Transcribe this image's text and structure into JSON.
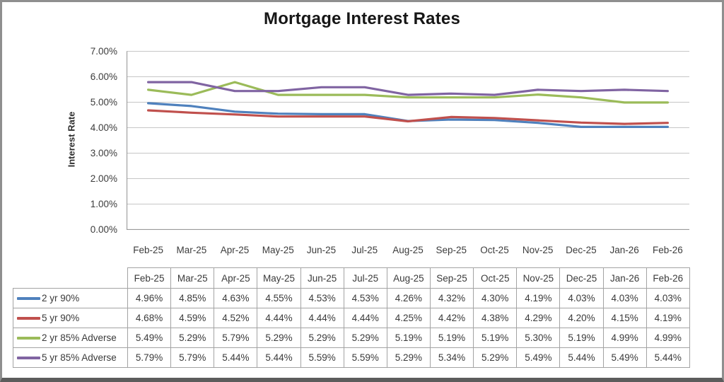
{
  "title": "Mortgage Interest Rates",
  "chart_data": {
    "type": "line",
    "title": "Mortgage Interest Rates",
    "xlabel": "",
    "ylabel": "Interest Rate",
    "ylim": [
      0,
      7
    ],
    "ytick_step": 1,
    "ytick_labels": [
      "0.00%",
      "1.00%",
      "2.00%",
      "3.00%",
      "4.00%",
      "5.00%",
      "6.00%",
      "7.00%"
    ],
    "grid": "horizontal",
    "legend_position": "data-table-left-column",
    "categories": [
      "Feb-25",
      "Mar-25",
      "Apr-25",
      "May-25",
      "Jun-25",
      "Jul-25",
      "Aug-25",
      "Sep-25",
      "Oct-25",
      "Nov-25",
      "Dec-25",
      "Jan-26",
      "Feb-26"
    ],
    "series": [
      {
        "name": "2 yr 90%",
        "color": "#4F81BD",
        "values": [
          4.96,
          4.85,
          4.63,
          4.55,
          4.53,
          4.53,
          4.26,
          4.32,
          4.3,
          4.19,
          4.03,
          4.03,
          4.03
        ]
      },
      {
        "name": "5 yr 90%",
        "color": "#C0504D",
        "values": [
          4.68,
          4.59,
          4.52,
          4.44,
          4.44,
          4.44,
          4.25,
          4.42,
          4.38,
          4.29,
          4.2,
          4.15,
          4.19
        ]
      },
      {
        "name": "2 yr 85% Adverse",
        "color": "#9BBB59",
        "values": [
          5.49,
          5.29,
          5.79,
          5.29,
          5.29,
          5.29,
          5.19,
          5.19,
          5.19,
          5.3,
          5.19,
          4.99,
          4.99
        ]
      },
      {
        "name": "5 yr 85% Adverse",
        "color": "#8064A2",
        "values": [
          5.79,
          5.79,
          5.44,
          5.44,
          5.59,
          5.59,
          5.29,
          5.34,
          5.29,
          5.49,
          5.44,
          5.49,
          5.44
        ]
      }
    ]
  },
  "data_table": {
    "columns": [
      "Feb-25",
      "Mar-25",
      "Apr-25",
      "May-25",
      "Jun-25",
      "Jul-25",
      "Aug-25",
      "Sep-25",
      "Oct-25",
      "Nov-25",
      "Dec-25",
      "Jan-26",
      "Feb-26"
    ],
    "rows": [
      {
        "label": "2 yr 90%",
        "values": [
          "4.96%",
          "4.85%",
          "4.63%",
          "4.55%",
          "4.53%",
          "4.53%",
          "4.26%",
          "4.32%",
          "4.30%",
          "4.19%",
          "4.03%",
          "4.03%",
          "4.03%"
        ]
      },
      {
        "label": "5 yr 90%",
        "values": [
          "4.68%",
          "4.59%",
          "4.52%",
          "4.44%",
          "4.44%",
          "4.44%",
          "4.25%",
          "4.42%",
          "4.38%",
          "4.29%",
          "4.20%",
          "4.15%",
          "4.19%"
        ]
      },
      {
        "label": "2 yr 85% Adverse",
        "values": [
          "5.49%",
          "5.29%",
          "5.79%",
          "5.29%",
          "5.29%",
          "5.29%",
          "5.19%",
          "5.19%",
          "5.19%",
          "5.30%",
          "5.19%",
          "4.99%",
          "4.99%"
        ]
      },
      {
        "label": "5 yr 85% Adverse",
        "values": [
          "5.79%",
          "5.79%",
          "5.44%",
          "5.44%",
          "5.59%",
          "5.59%",
          "5.29%",
          "5.34%",
          "5.29%",
          "5.49%",
          "5.44%",
          "5.49%",
          "5.44%"
        ]
      }
    ]
  },
  "colors": {
    "gridline": "#c6c6c6",
    "axis_line": "#9a9a9a",
    "table_border": "#a3a3a3",
    "text": "#3a3a3a",
    "frame_border": "#8f8f8f"
  }
}
